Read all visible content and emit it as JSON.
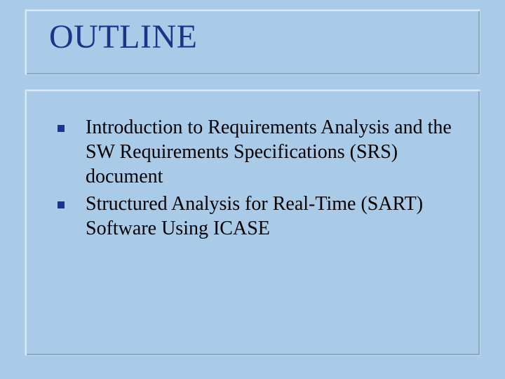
{
  "slide": {
    "background_color": "#a9cbe8",
    "title": {
      "text": "OUTLINE",
      "color": "#20338b",
      "fontsize": 48,
      "shadow_light": "#d8e8f4",
      "shadow_dark": "#8aaac8",
      "border_color": "#c2d9ec"
    },
    "content": {
      "shadow_light": "#d8e8f4",
      "shadow_dark": "#8aaac8",
      "border_color": "#c2d9ec",
      "text_color": "#000000",
      "fontsize": 28,
      "bullet_color": "#20338b",
      "items": [
        "Introduction to Requirements Analysis and the SW Requirements Specifications (SRS) document",
        "Structured Analysis for Real-Time (SART) Software Using ICASE"
      ]
    }
  }
}
